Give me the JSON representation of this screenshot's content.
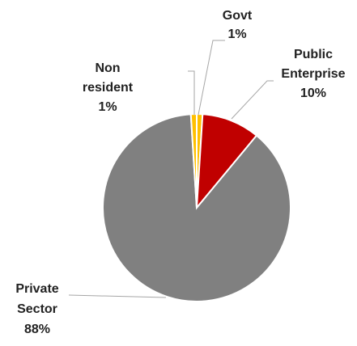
{
  "chart_data": {
    "type": "pie",
    "title": "",
    "slices": [
      {
        "name": "Govt",
        "label_lines": [
          "Govt",
          "1%"
        ],
        "value": 1,
        "color": "#FFC000"
      },
      {
        "name": "Public Enterprise",
        "label_lines": [
          "Public",
          "Enterprise",
          "10%"
        ],
        "value": 10,
        "color": "#C00000"
      },
      {
        "name": "Private Sector",
        "label_lines": [
          "Private",
          "Sector",
          "88%"
        ],
        "value": 88,
        "color": "#808080"
      },
      {
        "name": "Non resident",
        "label_lines": [
          "Non",
          "resident",
          "1%"
        ],
        "value": 1,
        "color": "#FFC000"
      }
    ],
    "start_angle_deg": 0,
    "direction": "clockwise",
    "legend": "none",
    "leader_color": "#A6A6A6",
    "border_color": "#FFFFFF"
  }
}
